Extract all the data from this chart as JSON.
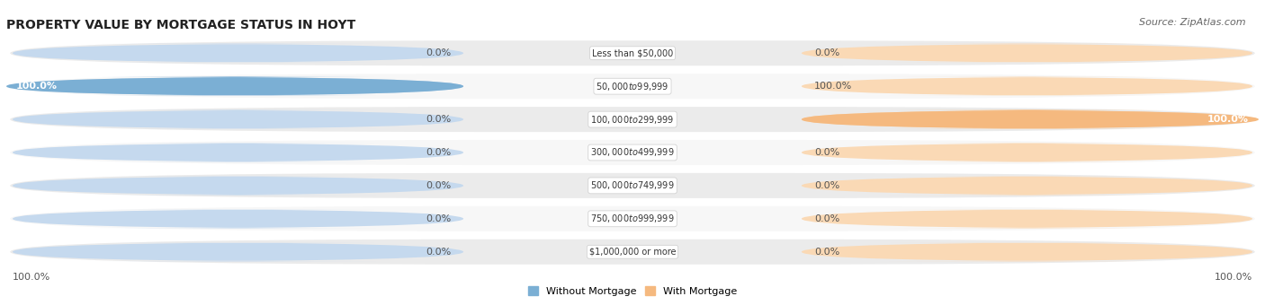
{
  "title": "PROPERTY VALUE BY MORTGAGE STATUS IN HOYT",
  "source": "Source: ZipAtlas.com",
  "categories": [
    "Less than $50,000",
    "$50,000 to $99,999",
    "$100,000 to $299,999",
    "$300,000 to $499,999",
    "$500,000 to $749,999",
    "$750,000 to $999,999",
    "$1,000,000 or more"
  ],
  "without_mortgage": [
    0.0,
    100.0,
    0.0,
    0.0,
    0.0,
    0.0,
    0.0
  ],
  "with_mortgage": [
    0.0,
    0.0,
    100.0,
    0.0,
    0.0,
    0.0,
    0.0
  ],
  "color_without": "#7bafd4",
  "color_with": "#f5b97f",
  "color_without_light": "#c5d9ee",
  "color_with_light": "#fad9b5",
  "row_bg_color": "#ebebeb",
  "row_bg_color2": "#f7f7f7",
  "title_fontsize": 10,
  "source_fontsize": 8,
  "label_fontsize": 8,
  "legend_labels": [
    "Without Mortgage",
    "With Mortgage"
  ]
}
